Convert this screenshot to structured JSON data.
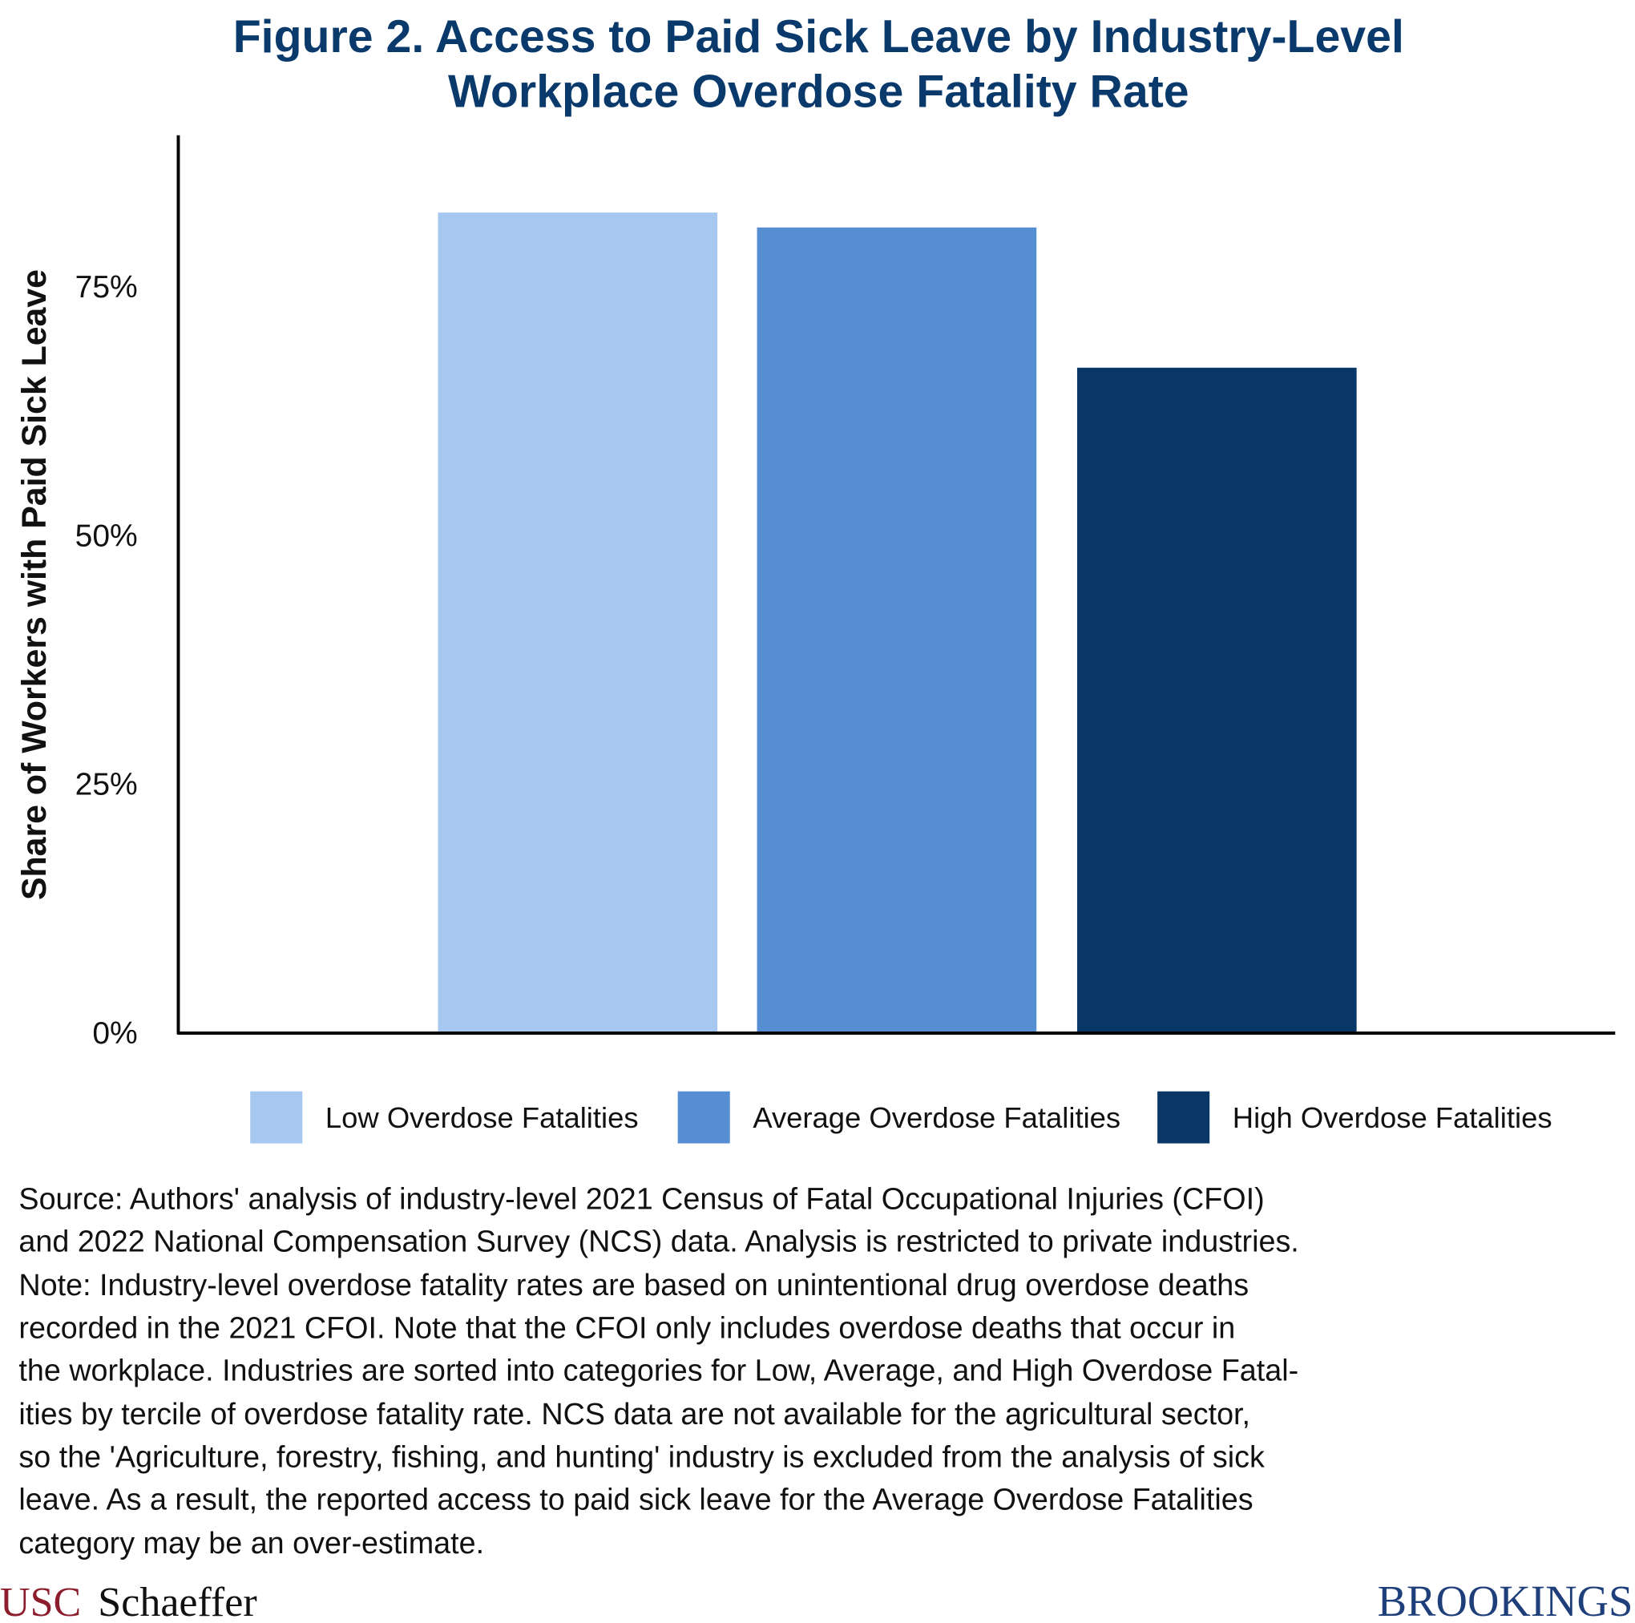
{
  "chart_data": {
    "type": "bar",
    "title_lines": [
      "Figure 2. Access to Paid Sick Leave by Industry-Level",
      "Workplace Overdose Fatality Rate"
    ],
    "ylabel": "Share of Workers with Paid Sick Leave",
    "xlabel": "",
    "ylim": [
      0,
      90
    ],
    "yticks": [
      0,
      25,
      50,
      75
    ],
    "ytick_labels": [
      "0%",
      "25%",
      "50%",
      "75%"
    ],
    "grid": false,
    "legend_position": "bottom",
    "series": [
      {
        "name": "Low Overdose Fatalities",
        "value": 82.5,
        "color": "#a5c7f0"
      },
      {
        "name": "Average Overdose Fatalities",
        "value": 81.0,
        "color": "#558ed3"
      },
      {
        "name": "High Overdose Fatalities",
        "value": 66.9,
        "color": "#073667"
      }
    ]
  },
  "note_lines": [
    "Source: Authors' analysis of industry-level 2021 Census of Fatal Occupational Injuries (CFOI)",
    "and 2022 National Compensation Survey (NCS) data. Analysis is restricted to private industries.",
    "Note: Industry-level overdose fatality rates are based on unintentional drug overdose deaths",
    "recorded in the 2021 CFOI. Note that the CFOI only includes overdose deaths that occur in",
    "the workplace. Industries are sorted into categories for Low, Average, and High Overdose Fatal-",
    "ities by tercile of overdose fatality rate. NCS data are not available for the agricultural sector,",
    "so the 'Agriculture, forestry, fishing, and hunting' industry is excluded from the analysis of sick",
    "leave. As a result, the reported access to paid sick leave for the Average Overdose Fatalities",
    "category may be an over-estimate."
  ],
  "logos": {
    "usc": "USC",
    "schaeffer": "Schaeffer",
    "brookings": "BROOKINGS"
  }
}
